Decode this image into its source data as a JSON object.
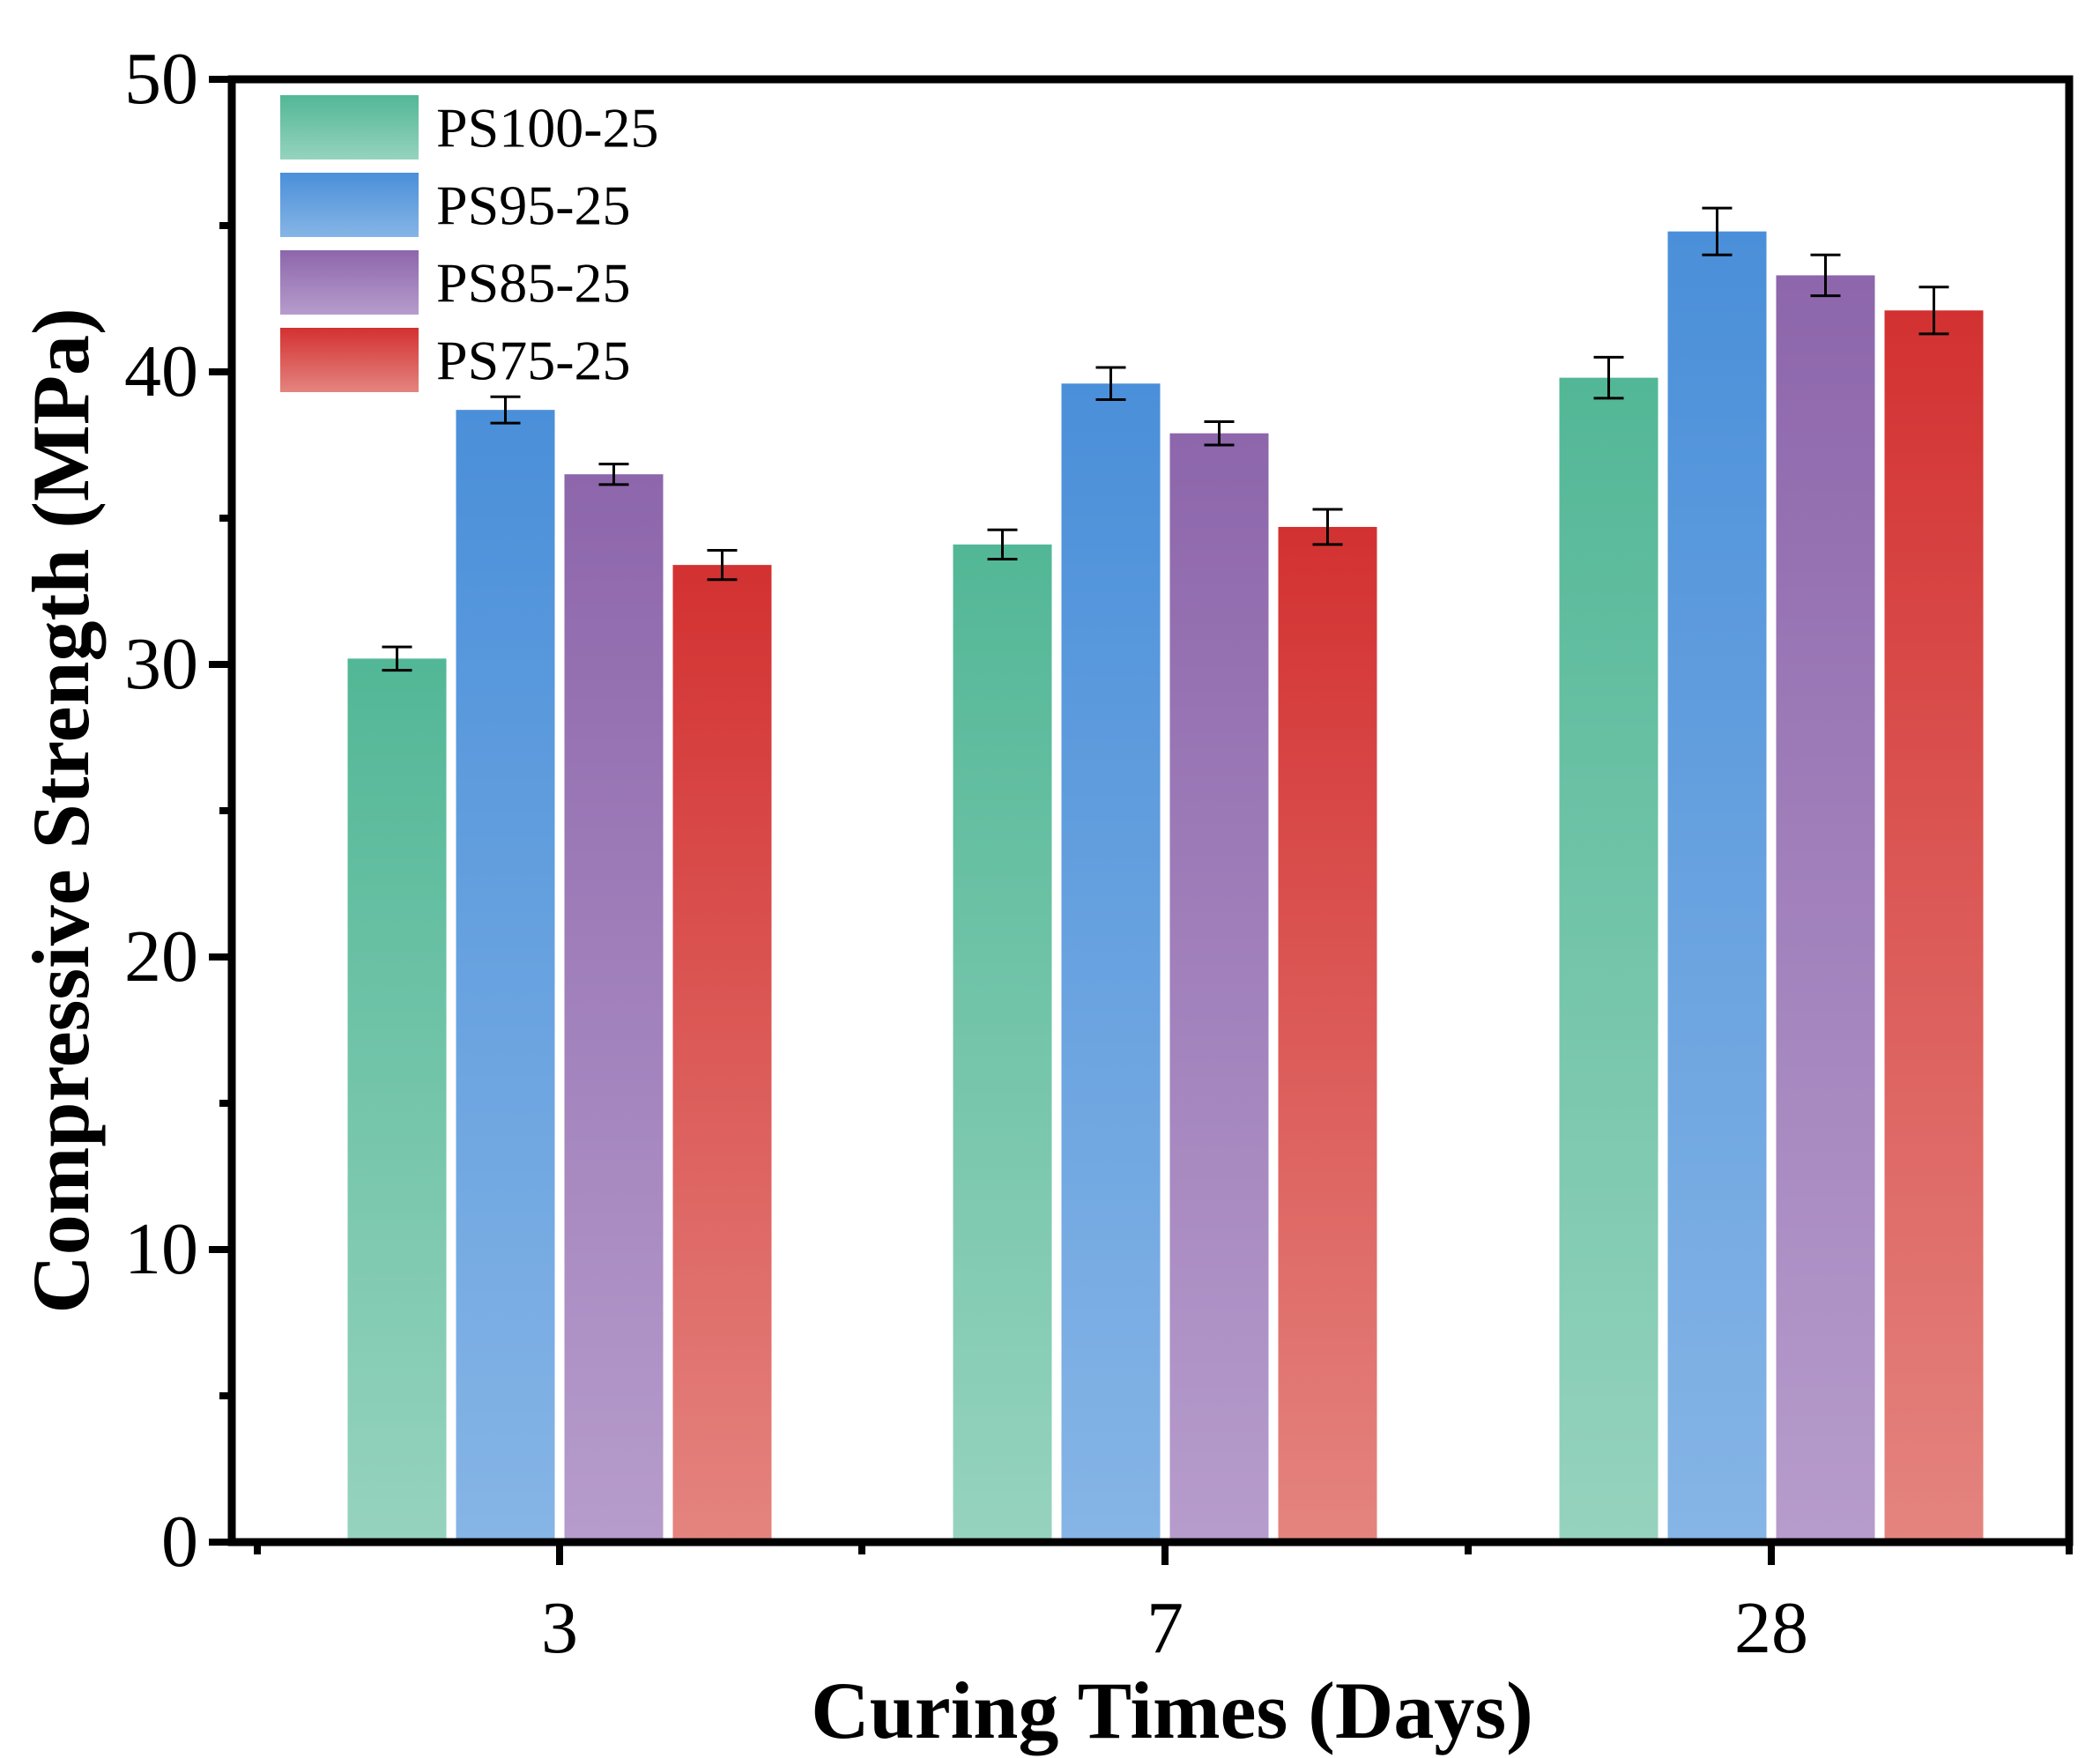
{
  "chart_data": {
    "type": "bar",
    "title": "",
    "xlabel": "Curing Times (Days)",
    "ylabel": "Compressive Strength (MPa)",
    "categories": [
      "3",
      "7",
      "28"
    ],
    "ylim": [
      0,
      50
    ],
    "yticks": [
      0,
      10,
      20,
      30,
      40,
      50
    ],
    "ytick_labels": [
      "0",
      "10",
      "20",
      "30",
      "40",
      "50"
    ],
    "grid": false,
    "legend_position": "top-left",
    "series": [
      {
        "name": "PS100-25",
        "color_top": "#52b796",
        "color_bottom": "#96d3be",
        "values": [
          30.2,
          34.1,
          39.8
        ],
        "errors": [
          0.4,
          0.5,
          0.7
        ]
      },
      {
        "name": "PS95-25",
        "color_top": "#4a8fd9",
        "color_bottom": "#86b5e6",
        "values": [
          38.7,
          39.6,
          44.8
        ],
        "errors": [
          0.45,
          0.55,
          0.8
        ]
      },
      {
        "name": "PS85-25",
        "color_top": "#8d66ab",
        "color_bottom": "#b69ccc",
        "values": [
          36.5,
          37.9,
          43.3
        ],
        "errors": [
          0.35,
          0.4,
          0.7
        ]
      },
      {
        "name": "PS75-25",
        "color_top": "#d33131",
        "color_bottom": "#e4847f",
        "values": [
          33.4,
          34.7,
          42.1
        ],
        "errors": [
          0.5,
          0.6,
          0.8
        ]
      }
    ]
  }
}
